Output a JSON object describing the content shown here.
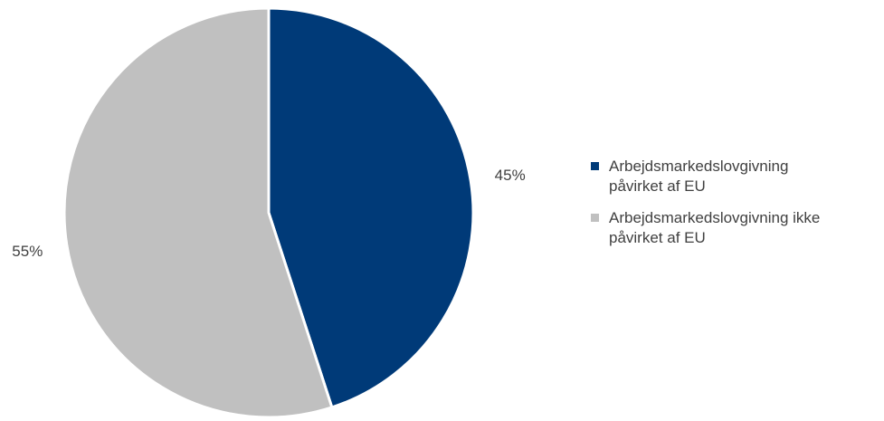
{
  "chart_data": {
    "type": "pie",
    "title": "",
    "start_angle_deg": 0,
    "direction": "clockwise",
    "slices": [
      {
        "label": "Arbejdsmarkedslovgivning påvirket af EU",
        "legend_lines": [
          "Arbejdsmarkedslovgivning",
          "påvirket af EU"
        ],
        "value": 45,
        "value_label": "45%",
        "color": "#003a78"
      },
      {
        "label": "Arbejdsmarkedslovgivning ikke påvirket af EU",
        "legend_lines": [
          "Arbejdsmarkedslovgivning ikke",
          "påvirket af EU"
        ],
        "value": 55,
        "value_label": "55%",
        "color": "#c0c0c0"
      }
    ],
    "legend_position": "right",
    "label_color": "#404040"
  }
}
